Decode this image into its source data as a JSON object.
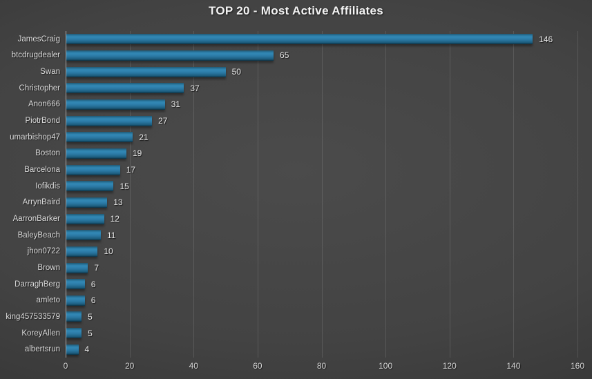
{
  "title": "TOP 20 - Most Active Affiliates",
  "colors": {
    "background_center": "#4b4b4b",
    "background_edge": "#2c2c2c",
    "bar_main": "#3287b4",
    "bar_dark_edge": "#0d2f40",
    "gridline": "rgba(255,255,255,0.12)",
    "axis_line": "#a9a9a9",
    "title_text": "#f3f3f3",
    "label_text": "#dcdcdc",
    "value_text": "#e8e8e8"
  },
  "chart_data": {
    "type": "bar",
    "orientation": "horizontal",
    "title": "TOP 20 - Most Active Affiliates",
    "categories": [
      "JamesCraig",
      "btcdrugdealer",
      "Swan",
      "Christopher",
      "Anon666",
      "PiotrBond",
      "umarbishop47",
      "Boston",
      "Barcelona",
      "Iofikdis",
      "ArrynBaird",
      "AarronBarker",
      "BaleyBeach",
      "jhon0722",
      "Brown",
      "DarraghBerg",
      "amleto",
      "king457533579",
      "KoreyAllen",
      "albertsrun"
    ],
    "values": [
      146,
      65,
      50,
      37,
      31,
      27,
      21,
      19,
      17,
      15,
      13,
      12,
      11,
      10,
      7,
      6,
      6,
      5,
      5,
      4
    ],
    "xlabel": "",
    "ylabel": "",
    "xlim": [
      0,
      160
    ],
    "xticks": [
      0,
      20,
      40,
      60,
      80,
      100,
      120,
      140,
      160
    ],
    "grid": true,
    "legend": false,
    "value_labels": true
  }
}
